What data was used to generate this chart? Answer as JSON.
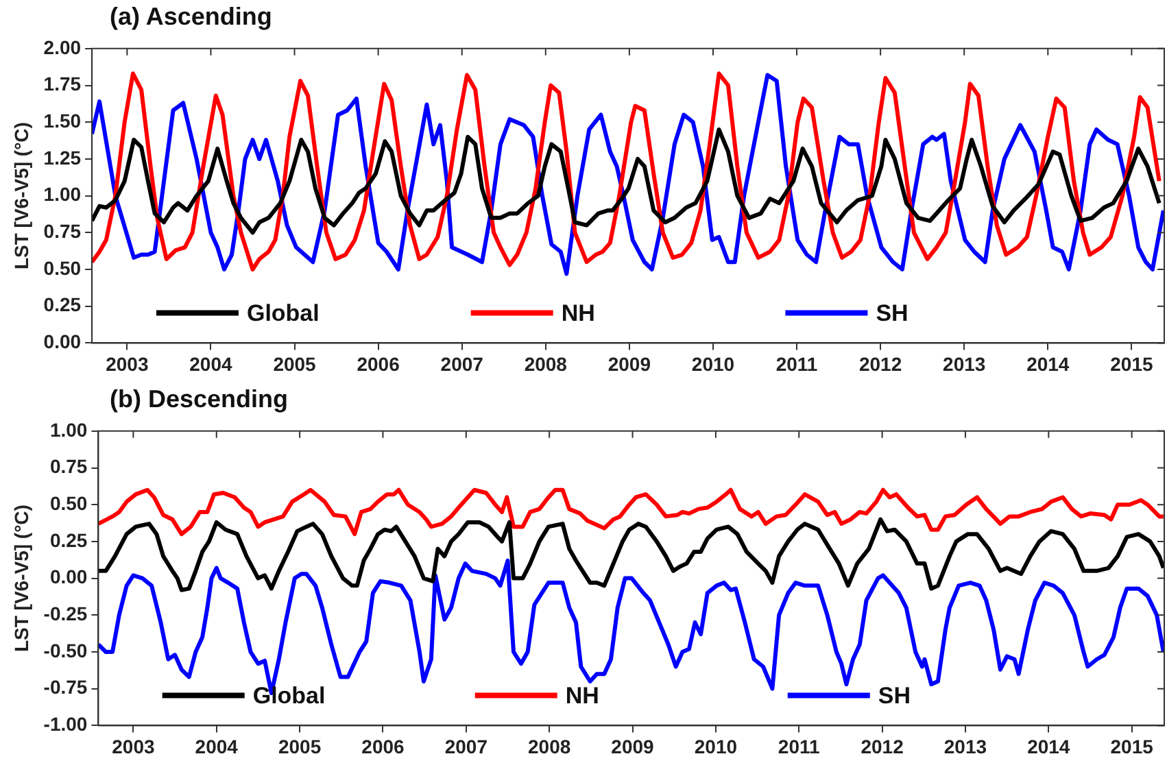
{
  "chart_data": [
    {
      "type": "line",
      "title": "(a) Ascending",
      "ylabel": "LST [V6-V5] (°C)",
      "xlim": [
        2002.58,
        2015.39
      ],
      "xticks": [
        2003,
        2004,
        2005,
        2006,
        2007,
        2008,
        2009,
        2010,
        2011,
        2012,
        2013,
        2014,
        2015
      ],
      "ylim": [
        0,
        2
      ],
      "yticks": [
        {
          "value": 0,
          "label": "0.00"
        },
        {
          "value": 0.25,
          "label": "0.25"
        },
        {
          "value": 0.5,
          "label": "0.50"
        },
        {
          "value": 0.75,
          "label": "0.75"
        },
        {
          "value": 1,
          "label": "1.00"
        },
        {
          "value": 1.25,
          "label": "1.25"
        },
        {
          "value": 1.5,
          "label": "1.50"
        },
        {
          "value": 1.75,
          "label": "1.75"
        },
        {
          "value": 2,
          "label": "2.00"
        }
      ],
      "legend": "bottom",
      "series": [
        {
          "name": "Global",
          "color": "#000000",
          "x": [
            2002.58,
            2002.67,
            2002.75,
            2002.86,
            2002.97,
            2003.08,
            2003.17,
            2003.25,
            2003.33,
            2003.44,
            2003.55,
            2003.61,
            2003.72,
            2003.83,
            2003.97,
            2004.08,
            2004.19,
            2004.27,
            2004.36,
            2004.5,
            2004.58,
            2004.69,
            2004.83,
            2004.94,
            2005.08,
            2005.16,
            2005.25,
            2005.36,
            2005.47,
            2005.58,
            2005.69,
            2005.77,
            2005.85,
            2005.97,
            2006.08,
            2006.16,
            2006.27,
            2006.38,
            2006.49,
            2006.58,
            2006.66,
            2006.8,
            2006.91,
            2006.99,
            2007.07,
            2007.16,
            2007.24,
            2007.35,
            2007.46,
            2007.57,
            2007.66,
            2007.79,
            2007.91,
            2007.99,
            2008.07,
            2008.18,
            2008.27,
            2008.35,
            2008.49,
            2008.63,
            2008.74,
            2008.8,
            2008.91,
            2008.99,
            2009.1,
            2009.18,
            2009.29,
            2009.43,
            2009.54,
            2009.68,
            2009.79,
            2009.93,
            2010.07,
            2010.18,
            2010.29,
            2010.43,
            2010.57,
            2010.68,
            2010.79,
            2010.96,
            2011.07,
            2011.18,
            2011.29,
            2011.48,
            2011.59,
            2011.73,
            2011.9,
            2012.01,
            2012.06,
            2012.17,
            2012.31,
            2012.45,
            2012.59,
            2012.67,
            2012.81,
            2012.95,
            2013.03,
            2013.09,
            2013.2,
            2013.34,
            2013.48,
            2013.59,
            2013.73,
            2013.89,
            2014.06,
            2014.14,
            2014.28,
            2014.39,
            2014.53,
            2014.67,
            2014.78,
            2014.94,
            2015.08,
            2015.19,
            2015.33
          ],
          "values": [
            0.83,
            0.93,
            0.92,
            0.97,
            1.1,
            1.38,
            1.33,
            1.1,
            0.88,
            0.82,
            0.92,
            0.95,
            0.9,
            1.0,
            1.1,
            1.32,
            1.1,
            0.95,
            0.85,
            0.75,
            0.82,
            0.85,
            0.95,
            1.1,
            1.38,
            1.3,
            1.05,
            0.85,
            0.8,
            0.88,
            0.95,
            1.02,
            1.05,
            1.15,
            1.37,
            1.3,
            1.0,
            0.88,
            0.8,
            0.9,
            0.9,
            0.97,
            1.02,
            1.15,
            1.4,
            1.35,
            1.05,
            0.85,
            0.85,
            0.88,
            0.88,
            0.95,
            1.0,
            1.2,
            1.35,
            1.3,
            1.05,
            0.82,
            0.8,
            0.88,
            0.9,
            0.9,
            0.98,
            1.05,
            1.25,
            1.2,
            0.9,
            0.82,
            0.85,
            0.92,
            0.95,
            1.1,
            1.45,
            1.3,
            1.0,
            0.85,
            0.88,
            0.98,
            0.95,
            1.1,
            1.32,
            1.2,
            0.95,
            0.82,
            0.9,
            0.97,
            1.0,
            1.2,
            1.38,
            1.25,
            0.95,
            0.85,
            0.83,
            0.88,
            0.97,
            1.05,
            1.25,
            1.38,
            1.2,
            0.93,
            0.82,
            0.9,
            0.98,
            1.08,
            1.3,
            1.28,
            1.0,
            0.83,
            0.85,
            0.92,
            0.95,
            1.1,
            1.32,
            1.2,
            0.95
          ]
        },
        {
          "name": "NH",
          "color": "#ff0000",
          "x": [
            2002.58,
            2002.67,
            2002.75,
            2002.86,
            2002.97,
            2003.07,
            2003.17,
            2003.28,
            2003.36,
            2003.47,
            2003.58,
            2003.69,
            2003.78,
            2003.91,
            2004.06,
            2004.14,
            2004.27,
            2004.36,
            2004.5,
            2004.58,
            2004.69,
            2004.77,
            2004.86,
            2004.94,
            2005.07,
            2005.16,
            2005.27,
            2005.38,
            2005.49,
            2005.61,
            2005.72,
            2005.83,
            2005.94,
            2006.07,
            2006.16,
            2006.27,
            2006.38,
            2006.49,
            2006.58,
            2006.71,
            2006.82,
            2006.94,
            2007.06,
            2007.16,
            2007.27,
            2007.38,
            2007.46,
            2007.57,
            2007.66,
            2007.77,
            2007.88,
            2007.99,
            2008.06,
            2008.16,
            2008.25,
            2008.35,
            2008.49,
            2008.6,
            2008.68,
            2008.77,
            2008.88,
            2009.02,
            2009.07,
            2009.18,
            2009.29,
            2009.4,
            2009.52,
            2009.63,
            2009.74,
            2009.85,
            2009.96,
            2010.07,
            2010.18,
            2010.29,
            2010.4,
            2010.54,
            2010.68,
            2010.79,
            2010.9,
            2011.01,
            2011.08,
            2011.18,
            2011.32,
            2011.43,
            2011.54,
            2011.65,
            2011.76,
            2011.87,
            2011.98,
            2012.06,
            2012.17,
            2012.29,
            2012.4,
            2012.56,
            2012.67,
            2012.78,
            2012.89,
            2013.01,
            2013.07,
            2013.17,
            2013.28,
            2013.39,
            2013.5,
            2013.64,
            2013.75,
            2013.86,
            2014.0,
            2014.1,
            2014.2,
            2014.31,
            2014.42,
            2014.5,
            2014.64,
            2014.75,
            2014.89,
            2015.03,
            2015.1,
            2015.19,
            2015.33
          ],
          "values": [
            0.55,
            0.62,
            0.7,
            1.0,
            1.5,
            1.83,
            1.72,
            1.2,
            0.85,
            0.57,
            0.63,
            0.65,
            0.75,
            1.2,
            1.68,
            1.55,
            1.0,
            0.75,
            0.5,
            0.57,
            0.62,
            0.7,
            1.0,
            1.4,
            1.78,
            1.68,
            1.2,
            0.75,
            0.57,
            0.6,
            0.7,
            0.9,
            1.3,
            1.76,
            1.65,
            1.2,
            0.8,
            0.57,
            0.6,
            0.72,
            1.0,
            1.45,
            1.82,
            1.72,
            1.2,
            0.75,
            0.65,
            0.53,
            0.6,
            0.75,
            1.05,
            1.5,
            1.75,
            1.7,
            1.3,
            0.75,
            0.55,
            0.6,
            0.62,
            0.68,
            1.0,
            1.5,
            1.61,
            1.58,
            1.15,
            0.75,
            0.58,
            0.6,
            0.68,
            0.9,
            1.35,
            1.83,
            1.75,
            1.2,
            0.75,
            0.58,
            0.62,
            0.7,
            1.0,
            1.5,
            1.66,
            1.6,
            1.1,
            0.75,
            0.58,
            0.62,
            0.7,
            1.0,
            1.5,
            1.8,
            1.7,
            1.2,
            0.75,
            0.57,
            0.65,
            0.75,
            1.1,
            1.5,
            1.76,
            1.68,
            1.2,
            0.8,
            0.6,
            0.65,
            0.72,
            1.0,
            1.4,
            1.66,
            1.6,
            1.1,
            0.75,
            0.6,
            0.65,
            0.72,
            1.0,
            1.4,
            1.67,
            1.6,
            1.1
          ]
        },
        {
          "name": "SH",
          "color": "#0000ff",
          "x": [
            2002.58,
            2002.67,
            2002.86,
            2003.08,
            2003.17,
            2003.25,
            2003.33,
            2003.55,
            2003.67,
            2003.83,
            2004.0,
            2004.08,
            2004.16,
            2004.25,
            2004.33,
            2004.41,
            2004.5,
            2004.58,
            2004.66,
            2004.8,
            2004.91,
            2005.02,
            2005.22,
            2005.36,
            2005.52,
            2005.63,
            2005.74,
            2005.85,
            2006.0,
            2006.1,
            2006.24,
            2006.35,
            2006.58,
            2006.66,
            2006.74,
            2006.82,
            2006.88,
            2007.07,
            2007.24,
            2007.35,
            2007.46,
            2007.57,
            2007.74,
            2007.85,
            2007.96,
            2008.07,
            2008.18,
            2008.25,
            2008.38,
            2008.52,
            2008.66,
            2008.77,
            2008.85,
            2008.93,
            2009.04,
            2009.18,
            2009.27,
            2009.4,
            2009.54,
            2009.65,
            2009.76,
            2009.88,
            2009.99,
            2010.07,
            2010.18,
            2010.26,
            2010.37,
            2010.54,
            2010.65,
            2010.76,
            2010.87,
            2011.01,
            2011.12,
            2011.23,
            2011.34,
            2011.51,
            2011.62,
            2011.73,
            2011.84,
            2012.01,
            2012.15,
            2012.26,
            2012.37,
            2012.51,
            2012.62,
            2012.67,
            2012.76,
            2012.84,
            2013.01,
            2013.12,
            2013.25,
            2013.34,
            2013.48,
            2013.67,
            2013.84,
            2013.98,
            2014.06,
            2014.17,
            2014.25,
            2014.39,
            2014.5,
            2014.58,
            2014.72,
            2014.83,
            2014.97,
            2015.08,
            2015.17,
            2015.25,
            2015.38
          ],
          "values": [
            1.42,
            1.64,
            1.0,
            0.58,
            0.6,
            0.6,
            0.62,
            1.58,
            1.63,
            1.25,
            0.75,
            0.65,
            0.5,
            0.6,
            0.9,
            1.25,
            1.38,
            1.25,
            1.38,
            1.1,
            0.8,
            0.65,
            0.55,
            0.9,
            1.55,
            1.58,
            1.66,
            1.2,
            0.68,
            0.62,
            0.5,
            0.9,
            1.62,
            1.35,
            1.48,
            1.1,
            0.65,
            0.6,
            0.55,
            0.9,
            1.35,
            1.52,
            1.48,
            1.4,
            1.0,
            0.67,
            0.62,
            0.47,
            1.0,
            1.45,
            1.55,
            1.3,
            1.2,
            1.0,
            0.7,
            0.55,
            0.5,
            0.85,
            1.35,
            1.55,
            1.5,
            1.2,
            0.7,
            0.72,
            0.55,
            0.55,
            1.0,
            1.5,
            1.82,
            1.78,
            1.2,
            0.7,
            0.6,
            0.55,
            0.9,
            1.4,
            1.35,
            1.35,
            1.0,
            0.65,
            0.55,
            0.5,
            0.9,
            1.35,
            1.4,
            1.38,
            1.42,
            1.1,
            0.7,
            0.62,
            0.55,
            0.9,
            1.25,
            1.48,
            1.3,
            0.9,
            0.65,
            0.62,
            0.5,
            0.9,
            1.35,
            1.45,
            1.38,
            1.35,
            1.0,
            0.65,
            0.55,
            0.5,
            0.9
          ]
        }
      ]
    },
    {
      "type": "line",
      "title": "(b) Descending",
      "ylabel": "LST [V6-V5] (°C)",
      "xlim": [
        2002.58,
        2015.39
      ],
      "xticks": [
        2003,
        2004,
        2005,
        2006,
        2007,
        2008,
        2009,
        2010,
        2011,
        2012,
        2013,
        2014,
        2015
      ],
      "ylim": [
        -1,
        1
      ],
      "yticks": [
        {
          "value": -1,
          "label": "-1.00"
        },
        {
          "value": -0.75,
          "label": "-0.75"
        },
        {
          "value": -0.5,
          "label": "-0.50"
        },
        {
          "value": -0.25,
          "label": "-0.25"
        },
        {
          "value": 0,
          "label": "0.00"
        },
        {
          "value": 0.25,
          "label": "0.25"
        },
        {
          "value": 0.5,
          "label": "0.50"
        },
        {
          "value": 0.75,
          "label": "0.75"
        },
        {
          "value": 1,
          "label": "1.00"
        }
      ],
      "legend": "bottom",
      "series": [
        {
          "name": "Global",
          "color": "#000000",
          "x": [
            2002.58,
            2002.67,
            2002.78,
            2002.92,
            2003.03,
            2003.19,
            2003.28,
            2003.36,
            2003.47,
            2003.53,
            2003.58,
            2003.67,
            2003.75,
            2003.83,
            2003.91,
            2004.0,
            2004.11,
            2004.25,
            2004.36,
            2004.5,
            2004.58,
            2004.66,
            2004.75,
            2004.86,
            2004.97,
            2005.08,
            2005.16,
            2005.27,
            2005.38,
            2005.52,
            2005.63,
            2005.69,
            2005.77,
            2005.85,
            2005.94,
            2006.02,
            2006.1,
            2006.16,
            2006.27,
            2006.38,
            2006.49,
            2006.6,
            2006.66,
            2006.74,
            2006.82,
            2006.91,
            2007.02,
            2007.16,
            2007.27,
            2007.38,
            2007.43,
            2007.52,
            2007.57,
            2007.68,
            2007.77,
            2007.88,
            2007.99,
            2008.16,
            2008.24,
            2008.32,
            2008.49,
            2008.57,
            2008.66,
            2008.77,
            2008.88,
            2008.96,
            2009.07,
            2009.16,
            2009.29,
            2009.4,
            2009.49,
            2009.57,
            2009.65,
            2009.74,
            2009.82,
            2009.9,
            2010.01,
            2010.15,
            2010.26,
            2010.37,
            2010.51,
            2010.6,
            2010.68,
            2010.76,
            2010.87,
            2010.98,
            2011.07,
            2011.23,
            2011.37,
            2011.48,
            2011.59,
            2011.7,
            2011.84,
            2011.98,
            2012.06,
            2012.15,
            2012.29,
            2012.42,
            2012.51,
            2012.59,
            2012.67,
            2012.81,
            2012.89,
            2013.03,
            2013.14,
            2013.28,
            2013.42,
            2013.5,
            2013.67,
            2013.78,
            2013.89,
            2014.03,
            2014.17,
            2014.31,
            2014.42,
            2014.58,
            2014.72,
            2014.83,
            2014.94,
            2015.08,
            2015.22,
            2015.33,
            2015.38
          ],
          "values": [
            0.05,
            0.05,
            0.15,
            0.3,
            0.35,
            0.37,
            0.3,
            0.15,
            0.05,
            0.0,
            -0.08,
            -0.07,
            0.05,
            0.18,
            0.25,
            0.38,
            0.33,
            0.3,
            0.15,
            0.0,
            0.02,
            -0.07,
            0.05,
            0.18,
            0.32,
            0.35,
            0.37,
            0.3,
            0.15,
            0.0,
            -0.05,
            -0.05,
            0.12,
            0.2,
            0.3,
            0.33,
            0.32,
            0.35,
            0.25,
            0.15,
            0.0,
            -0.02,
            0.2,
            0.15,
            0.25,
            0.3,
            0.38,
            0.38,
            0.35,
            0.28,
            0.25,
            0.38,
            0.0,
            0.0,
            0.1,
            0.25,
            0.35,
            0.37,
            0.2,
            0.12,
            -0.03,
            -0.03,
            -0.05,
            0.1,
            0.25,
            0.33,
            0.37,
            0.35,
            0.25,
            0.15,
            0.05,
            0.08,
            0.1,
            0.18,
            0.18,
            0.27,
            0.33,
            0.35,
            0.3,
            0.18,
            0.1,
            0.05,
            -0.03,
            0.15,
            0.25,
            0.33,
            0.37,
            0.33,
            0.2,
            0.1,
            -0.05,
            0.1,
            0.2,
            0.4,
            0.32,
            0.33,
            0.25,
            0.1,
            0.1,
            -0.07,
            -0.05,
            0.15,
            0.25,
            0.3,
            0.3,
            0.2,
            0.05,
            0.07,
            0.03,
            0.15,
            0.25,
            0.32,
            0.3,
            0.2,
            0.05,
            0.05,
            0.07,
            0.15,
            0.28,
            0.3,
            0.25,
            0.15,
            0.07
          ]
        },
        {
          "name": "NH",
          "color": "#ff0000",
          "x": [
            2002.58,
            2002.75,
            2002.83,
            2002.92,
            2003.03,
            2003.17,
            2003.25,
            2003.36,
            2003.47,
            2003.58,
            2003.69,
            2003.8,
            2003.89,
            2003.97,
            2004.08,
            2004.22,
            2004.33,
            2004.41,
            2004.5,
            2004.58,
            2004.69,
            2004.8,
            2004.91,
            2005.05,
            2005.13,
            2005.3,
            2005.41,
            2005.55,
            2005.66,
            2005.74,
            2005.85,
            2005.94,
            2006.05,
            2006.13,
            2006.19,
            2006.3,
            2006.44,
            2006.52,
            2006.58,
            2006.71,
            2006.82,
            2006.91,
            2007.02,
            2007.1,
            2007.24,
            2007.35,
            2007.43,
            2007.49,
            2007.57,
            2007.68,
            2007.77,
            2007.88,
            2007.99,
            2008.07,
            2008.16,
            2008.24,
            2008.37,
            2008.46,
            2008.66,
            2008.77,
            2008.85,
            2008.96,
            2009.04,
            2009.16,
            2009.29,
            2009.4,
            2009.54,
            2009.6,
            2009.68,
            2009.79,
            2009.9,
            2010.01,
            2010.12,
            2010.18,
            2010.29,
            2010.43,
            2010.51,
            2010.6,
            2010.73,
            2010.84,
            2010.96,
            2011.07,
            2011.23,
            2011.34,
            2011.43,
            2011.51,
            2011.62,
            2011.73,
            2011.81,
            2011.93,
            2012.01,
            2012.09,
            2012.17,
            2012.31,
            2012.42,
            2012.51,
            2012.59,
            2012.67,
            2012.76,
            2012.87,
            2013.01,
            2013.14,
            2013.25,
            2013.37,
            2013.42,
            2013.53,
            2013.64,
            2013.78,
            2013.92,
            2014.03,
            2014.17,
            2014.28,
            2014.39,
            2014.5,
            2014.67,
            2014.75,
            2014.83,
            2014.97,
            2015.11,
            2015.19,
            2015.33,
            2015.38
          ],
          "values": [
            0.37,
            0.42,
            0.45,
            0.52,
            0.57,
            0.6,
            0.55,
            0.43,
            0.4,
            0.3,
            0.35,
            0.45,
            0.45,
            0.57,
            0.58,
            0.55,
            0.48,
            0.45,
            0.35,
            0.38,
            0.4,
            0.42,
            0.52,
            0.57,
            0.6,
            0.52,
            0.43,
            0.42,
            0.3,
            0.45,
            0.47,
            0.52,
            0.57,
            0.57,
            0.6,
            0.5,
            0.45,
            0.4,
            0.35,
            0.37,
            0.42,
            0.48,
            0.55,
            0.6,
            0.58,
            0.5,
            0.45,
            0.55,
            0.35,
            0.35,
            0.45,
            0.47,
            0.55,
            0.6,
            0.6,
            0.47,
            0.44,
            0.39,
            0.34,
            0.4,
            0.42,
            0.5,
            0.55,
            0.57,
            0.5,
            0.42,
            0.43,
            0.45,
            0.44,
            0.47,
            0.48,
            0.52,
            0.57,
            0.6,
            0.47,
            0.42,
            0.45,
            0.37,
            0.42,
            0.43,
            0.5,
            0.57,
            0.52,
            0.43,
            0.45,
            0.37,
            0.4,
            0.45,
            0.44,
            0.52,
            0.6,
            0.55,
            0.57,
            0.48,
            0.42,
            0.43,
            0.33,
            0.33,
            0.42,
            0.43,
            0.5,
            0.55,
            0.47,
            0.4,
            0.37,
            0.42,
            0.42,
            0.45,
            0.47,
            0.52,
            0.55,
            0.47,
            0.42,
            0.44,
            0.43,
            0.4,
            0.5,
            0.5,
            0.53,
            0.5,
            0.42,
            0.42
          ]
        },
        {
          "name": "SH",
          "color": "#0000ff",
          "x": [
            2002.58,
            2002.67,
            2002.75,
            2002.83,
            2002.92,
            2003.0,
            2003.11,
            2003.22,
            2003.33,
            2003.42,
            2003.5,
            2003.58,
            2003.67,
            2003.75,
            2003.83,
            2003.89,
            2003.94,
            2004.0,
            2004.05,
            2004.14,
            2004.25,
            2004.33,
            2004.41,
            2004.5,
            2004.58,
            2004.66,
            2004.75,
            2004.83,
            2004.94,
            2005.02,
            2005.08,
            2005.19,
            2005.27,
            2005.38,
            2005.49,
            2005.58,
            2005.72,
            2005.8,
            2005.88,
            2005.97,
            2006.08,
            2006.22,
            2006.33,
            2006.44,
            2006.49,
            2006.58,
            2006.63,
            2006.74,
            2006.82,
            2006.91,
            2006.99,
            2007.07,
            2007.24,
            2007.35,
            2007.41,
            2007.5,
            2007.57,
            2007.66,
            2007.74,
            2007.82,
            2007.91,
            2007.99,
            2008.07,
            2008.16,
            2008.24,
            2008.32,
            2008.38,
            2008.49,
            2008.57,
            2008.66,
            2008.74,
            2008.82,
            2008.91,
            2008.99,
            2009.13,
            2009.21,
            2009.32,
            2009.43,
            2009.52,
            2009.6,
            2009.68,
            2009.75,
            2009.82,
            2009.9,
            2010.01,
            2010.1,
            2010.18,
            2010.24,
            2010.35,
            2010.46,
            2010.57,
            2010.68,
            2010.76,
            2010.87,
            2010.96,
            2011.07,
            2011.23,
            2011.34,
            2011.45,
            2011.51,
            2011.57,
            2011.65,
            2011.73,
            2011.81,
            2011.95,
            2012.01,
            2012.12,
            2012.2,
            2012.29,
            2012.4,
            2012.48,
            2012.51,
            2012.59,
            2012.67,
            2012.76,
            2012.81,
            2012.92,
            2013.06,
            2013.17,
            2013.25,
            2013.34,
            2013.42,
            2013.5,
            2013.59,
            2013.64,
            2013.75,
            2013.84,
            2013.95,
            2014.06,
            2014.17,
            2014.31,
            2014.42,
            2014.47,
            2014.58,
            2014.67,
            2014.78,
            2014.86,
            2014.94,
            2015.08,
            2015.19,
            2015.3,
            2015.38
          ],
          "values": [
            -0.45,
            -0.5,
            -0.5,
            -0.25,
            -0.05,
            0.02,
            0.0,
            -0.05,
            -0.3,
            -0.55,
            -0.52,
            -0.62,
            -0.67,
            -0.5,
            -0.4,
            -0.2,
            0.0,
            0.07,
            0.0,
            -0.03,
            -0.07,
            -0.3,
            -0.5,
            -0.58,
            -0.56,
            -0.78,
            -0.55,
            -0.3,
            0.0,
            0.03,
            0.03,
            -0.05,
            -0.2,
            -0.45,
            -0.67,
            -0.67,
            -0.5,
            -0.43,
            -0.1,
            -0.02,
            -0.03,
            -0.05,
            -0.15,
            -0.5,
            -0.7,
            -0.55,
            0.02,
            -0.28,
            -0.2,
            0.0,
            0.1,
            0.05,
            0.03,
            0.0,
            -0.05,
            0.12,
            -0.5,
            -0.58,
            -0.5,
            -0.18,
            -0.1,
            -0.03,
            -0.03,
            -0.03,
            -0.2,
            -0.3,
            -0.6,
            -0.7,
            -0.65,
            -0.65,
            -0.55,
            -0.2,
            0.0,
            0.0,
            -0.1,
            -0.15,
            -0.3,
            -0.45,
            -0.6,
            -0.5,
            -0.48,
            -0.3,
            -0.38,
            -0.1,
            -0.05,
            -0.03,
            -0.08,
            -0.07,
            -0.3,
            -0.55,
            -0.6,
            -0.75,
            -0.25,
            -0.1,
            -0.03,
            -0.05,
            -0.05,
            -0.25,
            -0.5,
            -0.58,
            -0.72,
            -0.55,
            -0.45,
            -0.15,
            0.0,
            0.02,
            -0.05,
            -0.1,
            -0.2,
            -0.5,
            -0.6,
            -0.55,
            -0.72,
            -0.7,
            -0.35,
            -0.2,
            -0.05,
            -0.03,
            -0.05,
            -0.15,
            -0.35,
            -0.62,
            -0.53,
            -0.55,
            -0.65,
            -0.35,
            -0.15,
            -0.03,
            -0.05,
            -0.1,
            -0.25,
            -0.5,
            -0.6,
            -0.55,
            -0.52,
            -0.4,
            -0.2,
            -0.07,
            -0.07,
            -0.12,
            -0.25,
            -0.5
          ]
        }
      ]
    }
  ]
}
